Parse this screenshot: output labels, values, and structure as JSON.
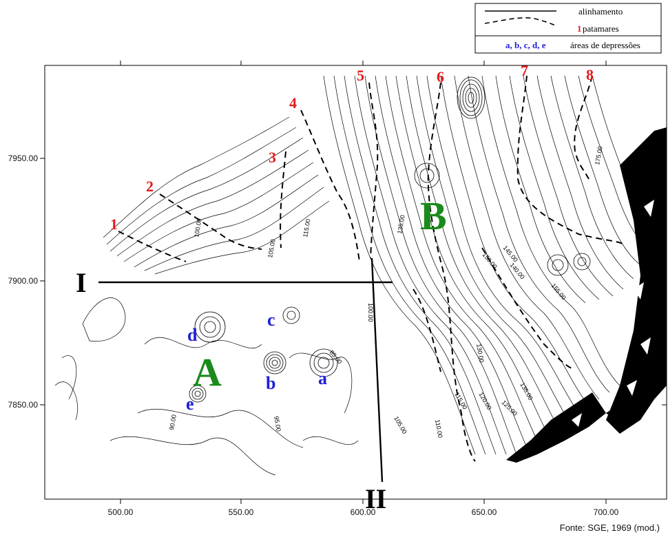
{
  "legend": {
    "alignment_label": "alinhamento",
    "terrace_number": "1",
    "terrace_label": "patamares",
    "depression_letters": "a, b, c, d, e",
    "depression_label": "áreas de depressões"
  },
  "axes": {
    "x_ticks": [
      "500.00",
      "550.00",
      "600.00",
      "650.00",
      "700.00"
    ],
    "y_ticks": [
      "7950.00",
      "7900.00",
      "7850.00"
    ]
  },
  "profiles": {
    "start_1": "I",
    "start_2": "II"
  },
  "terraces": [
    "1",
    "2",
    "3",
    "4",
    "5",
    "6",
    "7",
    "8"
  ],
  "areas": {
    "A": "A",
    "B": "B"
  },
  "depressions": [
    "a",
    "b",
    "c",
    "d",
    "e"
  ],
  "contour_labels": [
    "100.00",
    "105.00",
    "110.00",
    "115.00",
    "120.00",
    "125.00",
    "130.00",
    "135.00",
    "140.00",
    "145.00",
    "150.00",
    "155.00",
    "175.00",
    "90.00",
    "95.00",
    "85.00"
  ],
  "source": "Fonte: SGE, 1969 (mod.)",
  "colors": {
    "terrace": "#e31a1c",
    "depression": "#1f1fd6",
    "area": "#1a8a1a",
    "line": "#000000"
  }
}
